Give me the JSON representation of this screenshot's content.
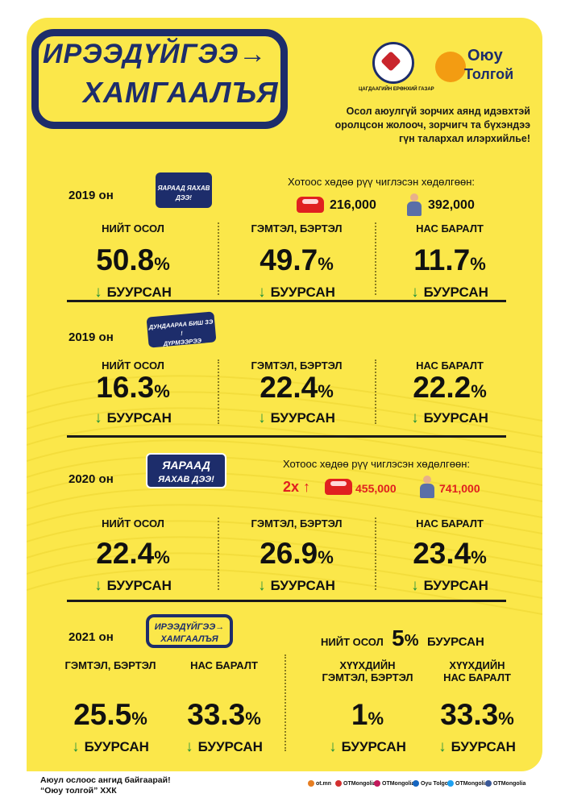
{
  "header": {
    "logo_line1": "ИРЭЭДҮЙГЭЭ→",
    "logo_line2": "ХАМГААЛЪЯ",
    "police_caption": "ЦАГДААГИЙН ЕРӨНХИЙ ГАЗАР",
    "ot_line1": "Оюу",
    "ot_line2": "Толгой",
    "thanks": [
      "Осол аюулгүй зорчих аянд идэвхтэй",
      "оролцсон жолооч, зорчигч та бүхэндээ",
      "гүн талархал илэрхийлье!"
    ]
  },
  "sections": [
    {
      "year": "2019 он",
      "campaign": "ЯАРААД ЯАХАВ ДЭЭ!",
      "traffic_label": "Хотоос хөдөө рүү чиглэсэн хөдөлгөөн:",
      "cars": "216,000",
      "people": "392,000",
      "stats": [
        {
          "label": "НИЙТ ОСОЛ",
          "value": "50.8",
          "unit": "%",
          "change": "БУУРСАН"
        },
        {
          "label": "ГЭМТЭЛ, БЭРТЭЛ",
          "value": "49.7",
          "unit": "%",
          "change": "БУУРСАН"
        },
        {
          "label": "НАС БАРАЛТ",
          "value": "11.7",
          "unit": "%",
          "change": "БУУРСАН"
        }
      ]
    },
    {
      "year": "2019 он",
      "campaign_l1": "ДУНДААРАА БИШ ЗЭ !",
      "campaign_l2": "ДҮРМЭЭРЭЭ",
      "stats": [
        {
          "label": "НИЙТ ОСОЛ",
          "value": "16.3",
          "unit": "%",
          "change": "БУУРСАН"
        },
        {
          "label": "ГЭМТЭЛ, БЭРТЭЛ",
          "value": "22.4",
          "unit": "%",
          "change": "БУУРСАН"
        },
        {
          "label": "НАС БАРАЛТ",
          "value": "22.2",
          "unit": "%",
          "change": "БУУРСАН"
        }
      ]
    },
    {
      "year": "2020 он",
      "campaign_l1": "ЯАРААД",
      "campaign_l2": "ЯАХАВ ДЭЭ!",
      "traffic_label": "Хотоос хөдөө рүү чиглэсэн хөдөлгөөн:",
      "multiplier": "2x",
      "cars": "455,000",
      "people": "741,000",
      "stats": [
        {
          "label": "НИЙТ ОСОЛ",
          "value": "22.4",
          "unit": "%",
          "change": "БУУРСАН"
        },
        {
          "label": "ГЭМТЭЛ, БЭРТЭЛ",
          "value": "26.9",
          "unit": "%",
          "change": "БУУРСАН"
        },
        {
          "label": "НАС БАРАЛТ",
          "value": "23.4",
          "unit": "%",
          "change": "БУУРСАН"
        }
      ]
    },
    {
      "year": "2021 он",
      "campaign_l1": "ИРЭЭДҮЙГЭЭ→",
      "campaign_l2": "ХАМГААЛЪЯ",
      "total_label": "НИЙТ ОСОЛ",
      "total_value": "5",
      "total_unit": "%",
      "total_change": "БУУРСАН",
      "stats": [
        {
          "label": "ГЭМТЭЛ, БЭРТЭЛ",
          "value": "25.5",
          "unit": "%",
          "change": "БУУРСАН"
        },
        {
          "label": "НАС БАРАЛТ",
          "value": "33.3",
          "unit": "%",
          "change": "БУУРСАН"
        }
      ],
      "child_stats": [
        {
          "label_l1": "ХҮҮХДИЙН",
          "label_l2": "ГЭМТЭЛ, БЭРТЭЛ",
          "value": "1",
          "unit": "%",
          "change": "БУУРСАН"
        },
        {
          "label_l1": "ХҮҮХДИЙН",
          "label_l2": "НАС БАРАЛТ",
          "value": "33.3",
          "unit": "%",
          "change": "БУУРСАН"
        }
      ]
    }
  ],
  "footer": {
    "line1": "Аюул ослоос ангид байгаарай!",
    "line2": "“Оюу толгой” ХХК",
    "social": [
      "ot.mn",
      "OTMongolia",
      "OTMongolia",
      "Oyu Tolgoi",
      "OTMongolia",
      "OTMongolia"
    ]
  },
  "colors": {
    "background": "#fbe74a",
    "navy": "#1d2d6b",
    "down_arrow": "#1e8f3b",
    "up_arrow": "#e02020"
  }
}
